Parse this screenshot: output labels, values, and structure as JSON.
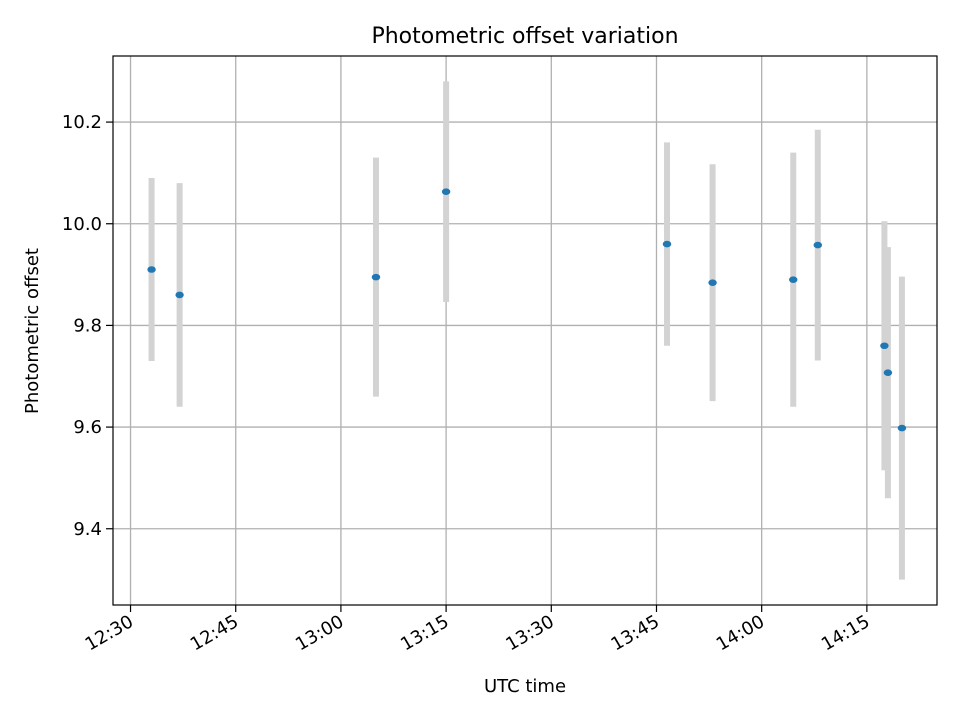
{
  "chart_data": {
    "type": "scatter",
    "title": "Photometric offset variation",
    "xlabel": "UTC time",
    "ylabel": "Photometric offset",
    "x_ticks": [
      "12:30",
      "12:45",
      "13:00",
      "13:15",
      "13:30",
      "13:45",
      "14:00",
      "14:15"
    ],
    "x_range": [
      "12:27:30",
      "14:25:00"
    ],
    "y_ticks": [
      "9.4",
      "9.6",
      "9.8",
      "10.0",
      "10.2"
    ],
    "ylim": [
      9.25,
      10.33
    ],
    "grid": true,
    "marker_color": "#1f77b4",
    "errorbar_color": "#d3d3d3",
    "points": [
      {
        "x": "12:33:00",
        "y": 9.91,
        "err": 0.18
      },
      {
        "x": "12:37:00",
        "y": 9.86,
        "err": 0.22
      },
      {
        "x": "13:05:00",
        "y": 9.895,
        "err": 0.235
      },
      {
        "x": "13:15:00",
        "y": 10.063,
        "err": 0.217
      },
      {
        "x": "13:46:30",
        "y": 9.96,
        "err": 0.2
      },
      {
        "x": "13:53:00",
        "y": 9.884,
        "err": 0.233
      },
      {
        "x": "14:04:30",
        "y": 9.89,
        "err": 0.25
      },
      {
        "x": "14:08:00",
        "y": 9.958,
        "err": 0.227
      },
      {
        "x": "14:17:30",
        "y": 9.76,
        "err": 0.245
      },
      {
        "x": "14:18:00",
        "y": 9.707,
        "err": 0.247
      },
      {
        "x": "14:20:00",
        "y": 9.598,
        "err": 0.298
      }
    ]
  }
}
